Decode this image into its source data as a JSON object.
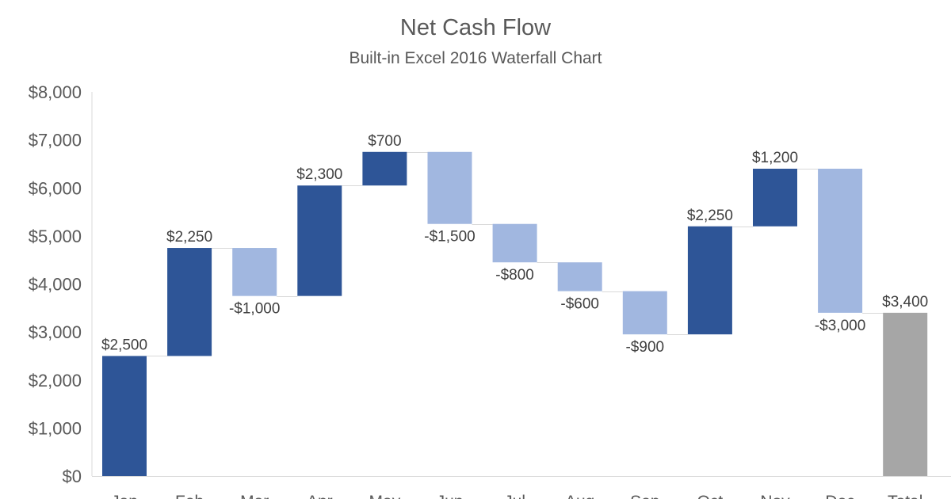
{
  "chart_data": {
    "type": "waterfall",
    "title": "Net Cash Flow",
    "subtitle": "Built-in Excel 2016 Waterfall Chart",
    "categories": [
      "Jan",
      "Feb",
      "Mar",
      "Apr",
      "May",
      "Jun",
      "Jul",
      "Aug",
      "Sep",
      "Oct",
      "Nov",
      "Dec",
      "Total"
    ],
    "values": [
      2500,
      2250,
      -1000,
      2300,
      700,
      -1500,
      -800,
      -600,
      -900,
      2250,
      1200,
      -3000,
      3400
    ],
    "data_labels": [
      "$2,500",
      "$2,250",
      "-$1,000",
      "$2,300",
      "$700",
      "-$1,500",
      "-$800",
      "-$600",
      "-$900",
      "$2,250",
      "$1,200",
      "-$3,000",
      "$3,400"
    ],
    "total_index": 12,
    "ylim": [
      0,
      8000
    ],
    "yticks": [
      0,
      1000,
      2000,
      3000,
      4000,
      5000,
      6000,
      7000,
      8000
    ],
    "ytick_labels": [
      "$0",
      "$1,000",
      "$2,000",
      "$3,000",
      "$4,000",
      "$5,000",
      "$6,000",
      "$7,000",
      "$8,000"
    ],
    "grid": false,
    "connector_lines": true,
    "colors": {
      "increase": "#2e5597",
      "decrease": "#a1b7e0",
      "total": "#a6a6a6",
      "connector": "#d9d9d9",
      "axis": "#d9d9d9"
    }
  }
}
